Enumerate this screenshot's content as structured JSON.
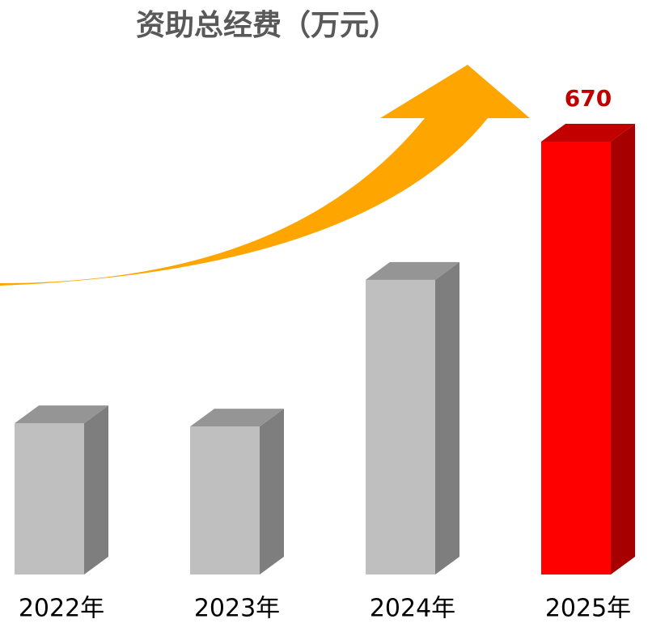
{
  "chart_data": {
    "type": "bar3d",
    "title": "资助总经费（万元）",
    "categories": [
      "2022年",
      "2023年",
      "2024年",
      "2025年"
    ],
    "values": [
      234,
      229,
      456,
      670
    ],
    "value_labels": [
      null,
      null,
      null,
      "670"
    ],
    "colors": [
      "#bfbfbf",
      "#bfbfbf",
      "#bfbfbf",
      "#ff0000"
    ]
  }
}
